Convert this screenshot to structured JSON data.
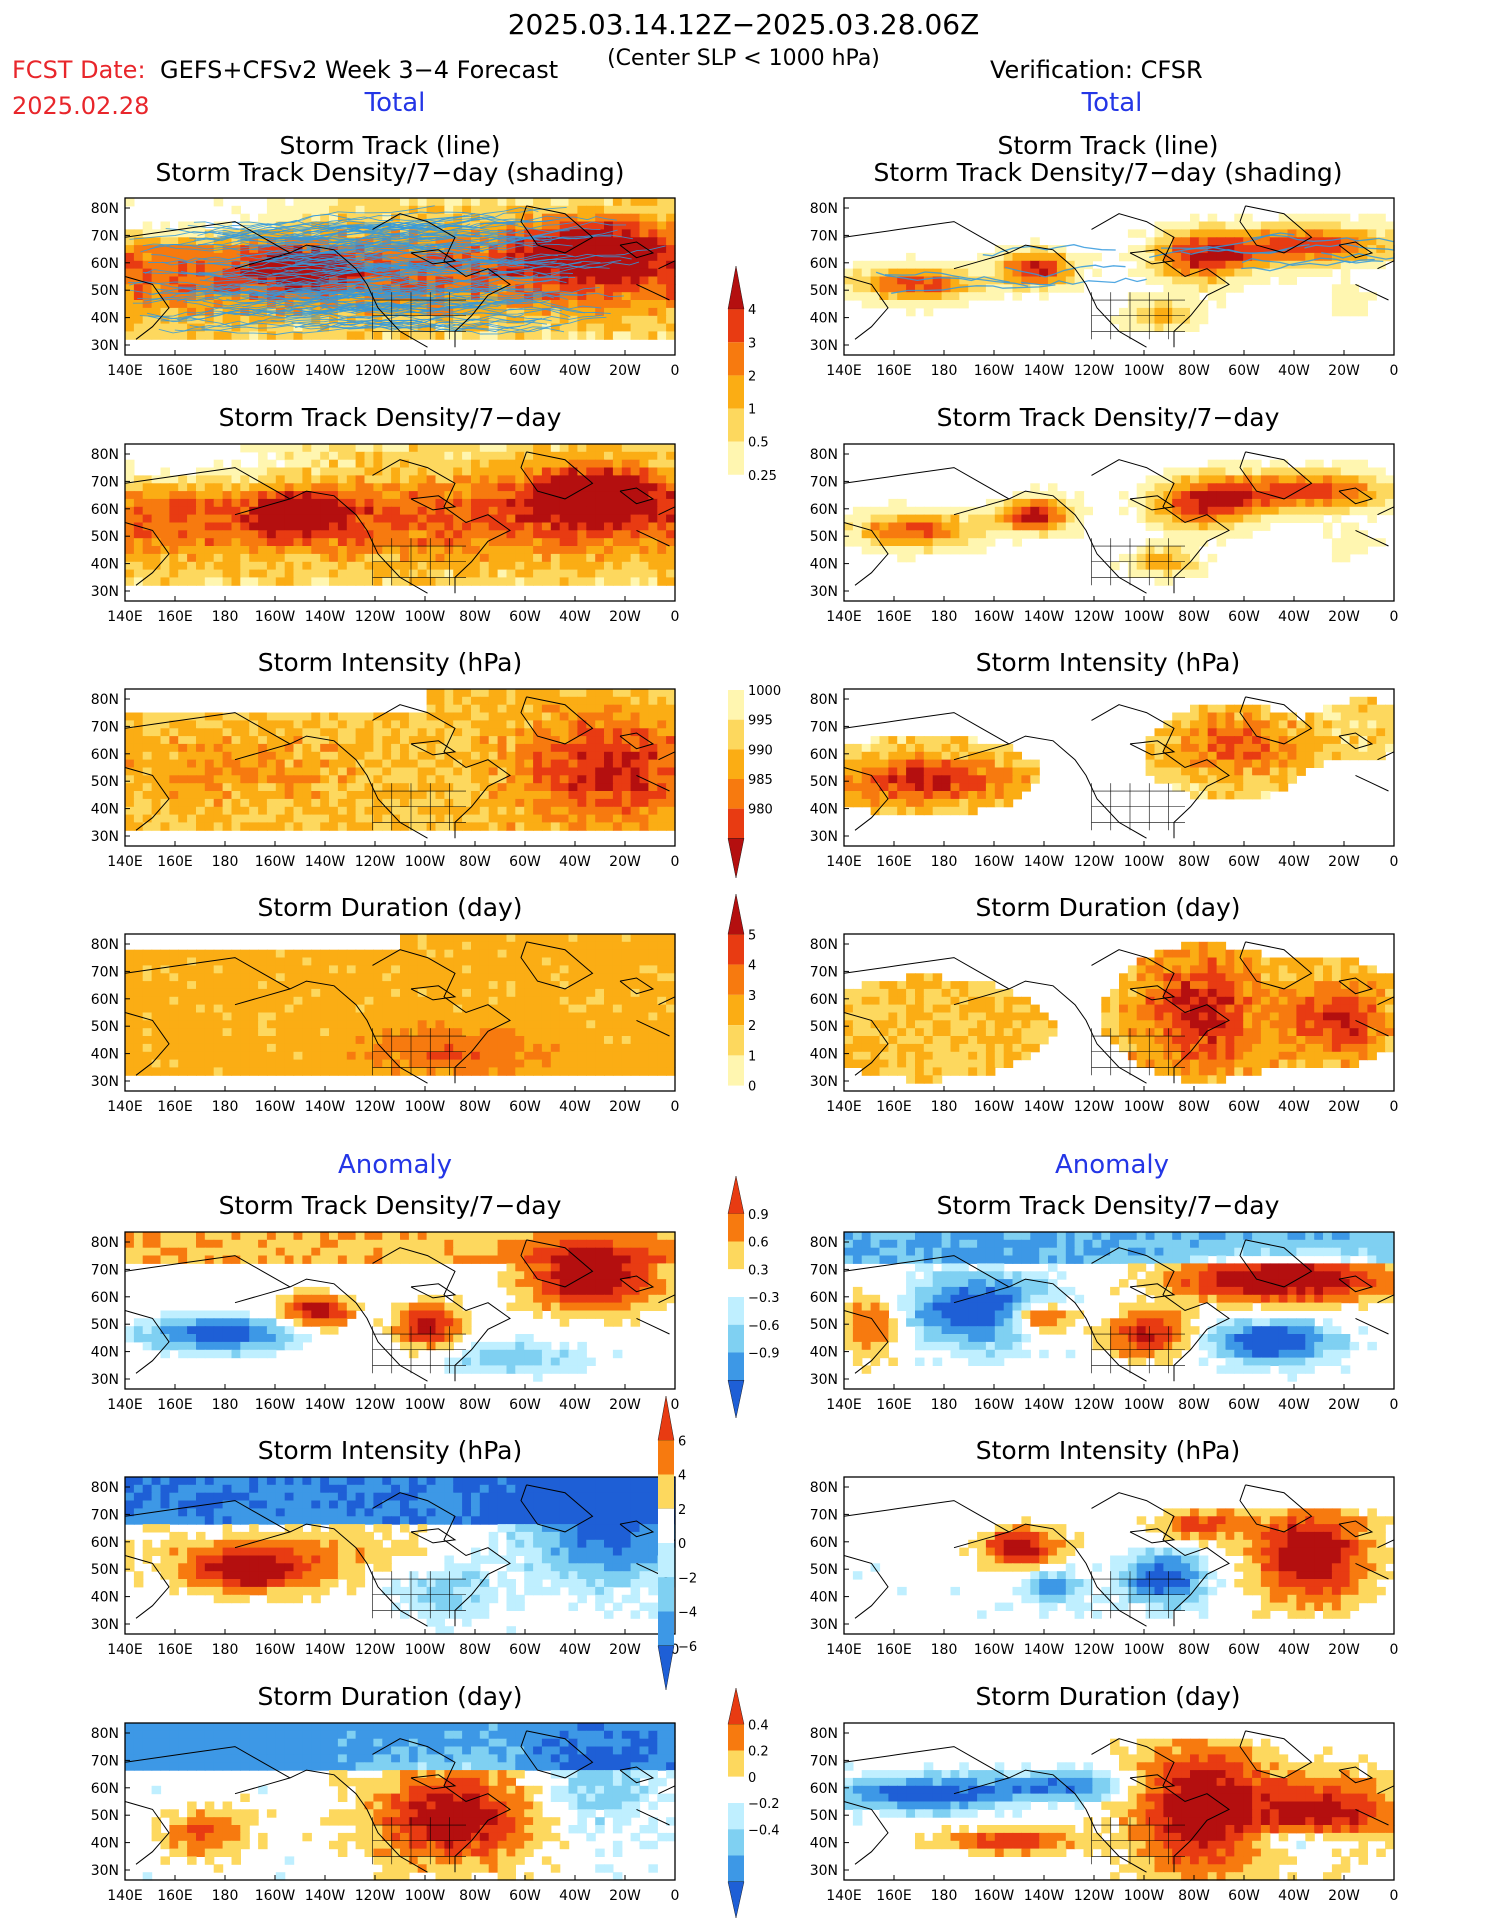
{
  "header": {
    "period": "2025.03.14.12Z−2025.03.28.06Z",
    "criterion": "(Center SLP < 1000 hPa)",
    "fcst_label": "FCST Date:",
    "fcst_model": "GEFS+CFSv2 Week 3−4 Forecast",
    "fcst_date": "2025.02.28",
    "verification": "Verification: CFSR"
  },
  "sections": {
    "total_left": "Total",
    "total_right": "Total",
    "anomaly_left": "Anomaly",
    "anomaly_right": "Anomaly"
  },
  "panels": {
    "storm_track_title_1": "Storm Track (line)",
    "storm_track_title_2": "Storm Track Density/7−day (shading)",
    "density_title": "Storm Track Density/7−day",
    "intensity_title": "Storm Intensity (hPa)",
    "duration_title": "Storm Duration (day)"
  },
  "map_axes": {
    "lat_labels": [
      "80N",
      "70N",
      "60N",
      "50N",
      "40N",
      "30N"
    ],
    "lon_labels": [
      "140E",
      "160E",
      "180",
      "160W",
      "140W",
      "120W",
      "100W",
      "80W",
      "60W",
      "40W",
      "20W",
      "0"
    ]
  },
  "colorbars": {
    "density_total": [
      "4",
      "3",
      "2",
      "1",
      "0.5",
      "0.25"
    ],
    "intensity_total": [
      "1000",
      "995",
      "990",
      "985",
      "980"
    ],
    "duration_total": [
      "5",
      "4",
      "3",
      "2",
      "1",
      "0"
    ],
    "density_anom": [
      "0.9",
      "0.6",
      "0.3",
      "−0.3",
      "−0.6",
      "−0.9"
    ],
    "intensity_anom": [
      "6",
      "4",
      "2",
      "0",
      "−2",
      "−4",
      "−6"
    ],
    "duration_anom": [
      "0.4",
      "0.2",
      "0",
      "−0.2",
      "−0.4"
    ]
  },
  "colors": {
    "fcst_red": "#e8262b",
    "section_blue": "#2436e6",
    "warm_scale": [
      "#fff6b0",
      "#fdd85e",
      "#fbad14",
      "#f77a0f",
      "#e83b12",
      "#b40f0f"
    ],
    "cool_scale": [
      "#bfefff",
      "#7fd0f2",
      "#3d98e6",
      "#1e5fd6"
    ],
    "track_line": "#3399dd"
  }
}
